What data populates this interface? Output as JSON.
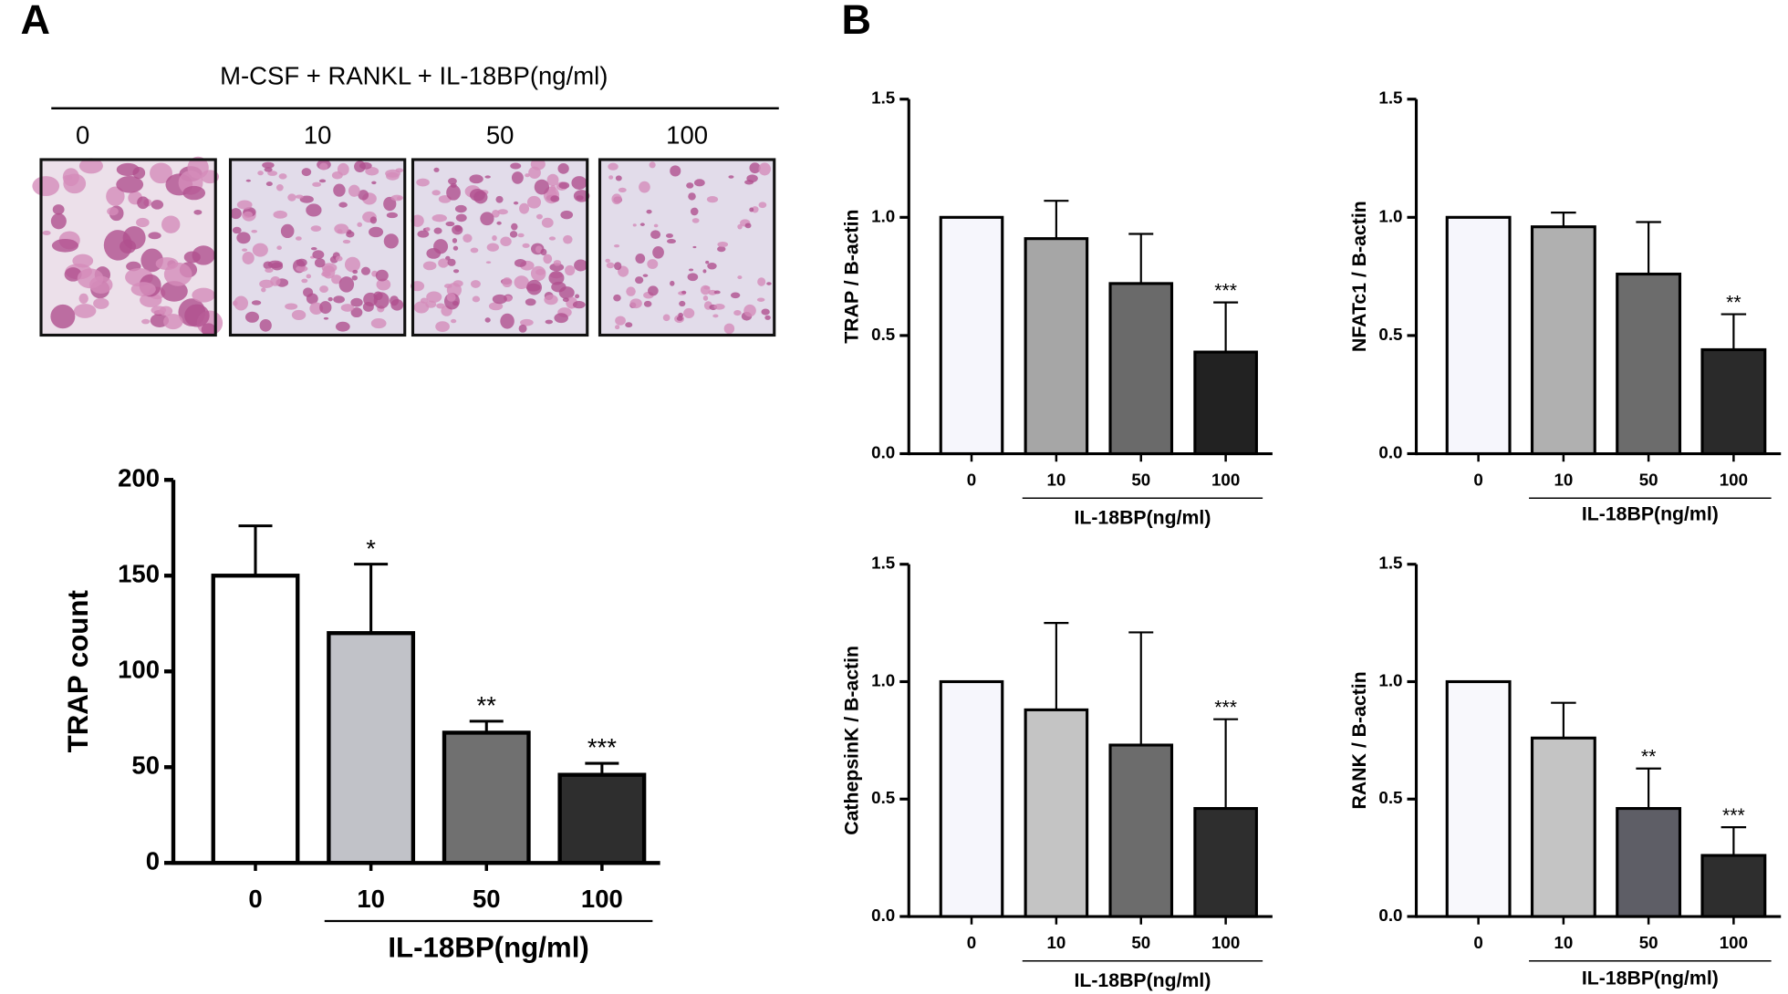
{
  "panel_labels": [
    "A",
    "B"
  ],
  "micrographs": {
    "title": "M-CSF + RANKL + IL-18BP(ng/ml)",
    "labels": [
      "0",
      "10",
      "50",
      "100"
    ]
  },
  "chart_data": [
    {
      "type": "bar",
      "ylabel": "TRAP count",
      "xlabel": "IL-18BP(ng/ml)",
      "categories": [
        "0",
        "10",
        "50",
        "100"
      ],
      "values": [
        150,
        120,
        68,
        46
      ],
      "errors": [
        26,
        36,
        6,
        6
      ],
      "significance": [
        null,
        "*",
        "**",
        "***"
      ],
      "colors": [
        "#ffffff",
        "#c1c2c8",
        "#707070",
        "#2e2e2e"
      ],
      "ylim": [
        0,
        200
      ],
      "yticks": [
        0,
        50,
        100,
        150,
        200
      ]
    },
    {
      "type": "bar",
      "ylabel": "TRAP / B-actin",
      "xlabel": "IL-18BP(ng/ml)",
      "categories": [
        "0",
        "10",
        "50",
        "100"
      ],
      "values": [
        1.0,
        0.91,
        0.72,
        0.43
      ],
      "errors": [
        null,
        0.16,
        0.21,
        0.21
      ],
      "significance": [
        null,
        null,
        null,
        "***"
      ],
      "colors": [
        "#f6f6fc",
        "#a6a6a6",
        "#6a6a6a",
        "#222222"
      ],
      "ylim": [
        0,
        1.5
      ],
      "yticks": [
        {
          "value": 0,
          "label": "0.0"
        },
        0.5,
        {
          "value": 1,
          "label": "1.0"
        },
        1.5
      ]
    },
    {
      "type": "bar",
      "ylabel": "NFATc1 / B-actin",
      "xlabel": "IL-18BP(ng/ml)",
      "categories": [
        "0",
        "10",
        "50",
        "100"
      ],
      "values": [
        1.0,
        0.96,
        0.76,
        0.44
      ],
      "errors": [
        null,
        0.06,
        0.22,
        0.15
      ],
      "significance": [
        null,
        null,
        null,
        "**"
      ],
      "colors": [
        "#f6f6fc",
        "#b0b0b0",
        "#6c6c6c",
        "#2a2a2a"
      ],
      "ylim": [
        0,
        1.5
      ],
      "yticks": [
        {
          "value": 0,
          "label": "0.0"
        },
        0.5,
        {
          "value": 1,
          "label": "1.0"
        },
        1.5
      ]
    },
    {
      "type": "bar",
      "ylabel": "CathepsinK / B-actin",
      "xlabel": "IL-18BP(ng/ml)",
      "categories": [
        "0",
        "10",
        "50",
        "100"
      ],
      "values": [
        1.0,
        0.88,
        0.73,
        0.46
      ],
      "errors": [
        null,
        0.37,
        0.48,
        0.38
      ],
      "significance": [
        null,
        null,
        null,
        "***"
      ],
      "colors": [
        "#f6f6fc",
        "#c4c4c4",
        "#6c6c6c",
        "#2e2e2e"
      ],
      "ylim": [
        0,
        1.5
      ],
      "yticks": [
        {
          "value": 0,
          "label": "0.0"
        },
        0.5,
        {
          "value": 1,
          "label": "1.0"
        },
        1.5
      ]
    },
    {
      "type": "bar",
      "ylabel": "RANK / B-actin",
      "xlabel": "IL-18BP(ng/ml)",
      "categories": [
        "0",
        "10",
        "50",
        "100"
      ],
      "values": [
        1.0,
        0.76,
        0.46,
        0.26
      ],
      "errors": [
        null,
        0.15,
        0.17,
        0.12
      ],
      "significance": [
        null,
        null,
        "**",
        "***"
      ],
      "colors": [
        "#f8f8fc",
        "#c4c4c4",
        "#5e5e66",
        "#2e2e2e"
      ],
      "ylim": [
        0,
        1.5
      ],
      "yticks": [
        {
          "value": 0,
          "label": "0.0"
        },
        0.5,
        {
          "value": 1,
          "label": "1.0"
        },
        1.5
      ]
    }
  ]
}
